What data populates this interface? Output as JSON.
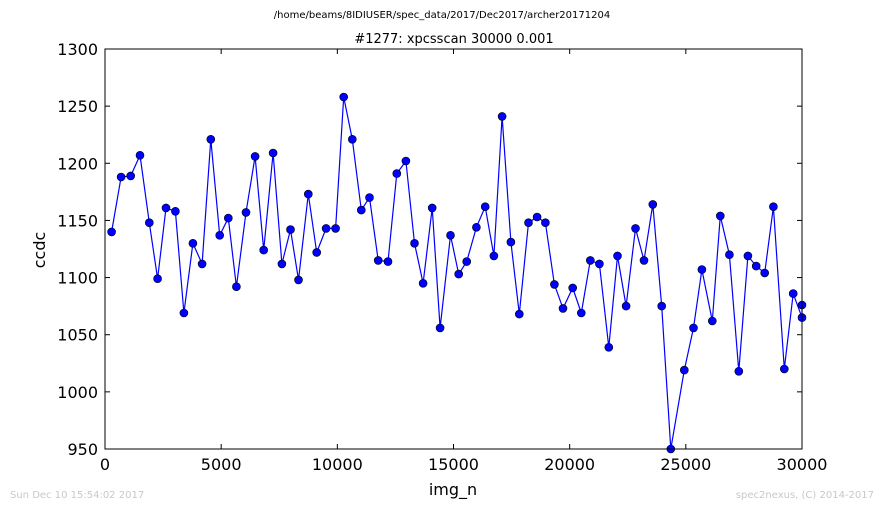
{
  "chart_data": {
    "type": "line",
    "suptitle": "/home/beams/8IDIUSER/spec_data/2017/Dec2017/archer20171204",
    "title": "#1277: xpcsscan 30000 0.001",
    "xlabel": "img_n",
    "ylabel": "ccdc",
    "xlim": [
      0,
      30000
    ],
    "ylim": [
      950,
      1300
    ],
    "xticks": [
      0,
      5000,
      10000,
      15000,
      20000,
      25000,
      30000
    ],
    "yticks": [
      950,
      1000,
      1050,
      1100,
      1150,
      1200,
      1250,
      1300
    ],
    "grid": false,
    "color": "#0000ff",
    "marker": "circle",
    "series": [
      {
        "x": [
          286,
          695,
          1105,
          1505,
          1905,
          2265,
          2625,
          3030,
          3395,
          3785,
          4180,
          4555,
          4935,
          5305,
          5655,
          6070,
          6460,
          6830,
          7235,
          7615,
          7985,
          8330,
          8750,
          9110,
          9515,
          9925,
          10275,
          10645,
          11030,
          11385,
          11760,
          12180,
          12560,
          12950,
          13320,
          13690,
          14085,
          14425,
          14870,
          15225,
          15570,
          15985,
          16365,
          16740,
          17090,
          17470,
          17830,
          18230,
          18600,
          18955,
          19345,
          19715,
          20130,
          20500,
          20890,
          21280,
          21685,
          22060,
          22430,
          22835,
          23200,
          23580,
          23960,
          24355,
          24935,
          25330,
          25690,
          26140,
          26485,
          26875,
          27280,
          27670,
          28030,
          28395,
          28770,
          29240,
          29620,
          30000,
          30000
        ],
        "y": [
          1140,
          1188,
          1189,
          1207,
          1148,
          1099,
          1161,
          1158,
          1069,
          1130,
          1112,
          1221,
          1137,
          1152,
          1092,
          1157,
          1206,
          1124,
          1209,
          1112,
          1142,
          1098,
          1173,
          1122,
          1143,
          1143,
          1258,
          1221,
          1159,
          1170,
          1115,
          1114,
          1191,
          1202,
          1130,
          1095,
          1161,
          1056,
          1137,
          1103,
          1114,
          1144,
          1162,
          1119,
          1241,
          1131,
          1068,
          1148,
          1153,
          1148,
          1094,
          1073,
          1091,
          1069,
          1115,
          1112,
          1039,
          1119,
          1075,
          1143,
          1115,
          1164,
          1075,
          950,
          1019,
          1056,
          1107,
          1062,
          1154,
          1120,
          1018,
          1119,
          1110,
          1104,
          1162,
          1020,
          1086,
          1065,
          1076
        ]
      }
    ]
  },
  "footer": {
    "left": "Sun Dec 10 15:54:02 2017",
    "right": "spec2nexus, (C) 2014-2017"
  }
}
